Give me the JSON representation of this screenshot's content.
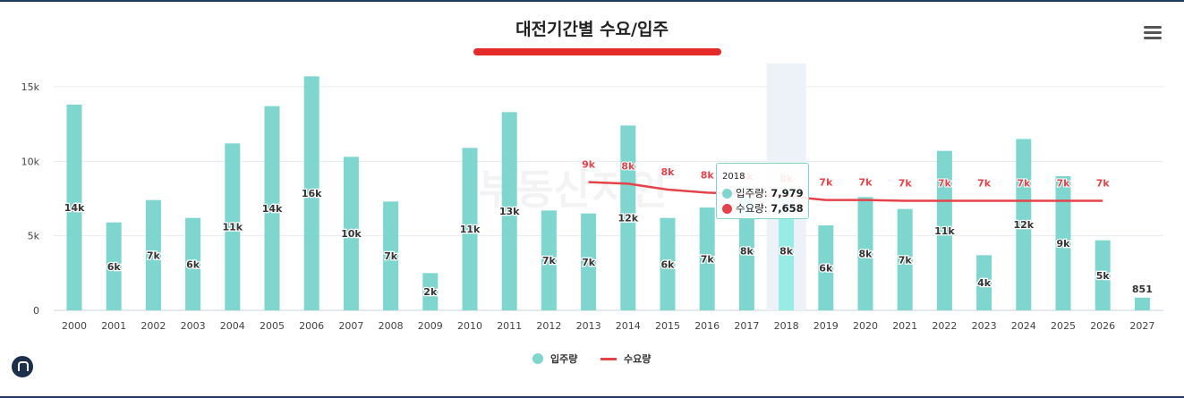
{
  "title": "대전기간별 수요/입주",
  "colors": {
    "bar": "#7fd6cf",
    "bar_highlight": "#97ece6",
    "line": "#e5434a",
    "title_underline": "#e52a2a",
    "highlight_band": "#edf1f8"
  },
  "menu_icon": "hamburger-menu-icon",
  "logo_icon": "house-logo-icon",
  "watermark": "부동산지인",
  "legend": {
    "supply_label": "입주량",
    "demand_label": "수요량"
  },
  "tooltip": {
    "year": "2018",
    "supply_label": "입주량:",
    "supply_value": "7,979",
    "demand_label": "수요량:",
    "demand_value": "7,658"
  },
  "chart_data": {
    "type": "bar",
    "categories": [
      "2000",
      "2001",
      "2002",
      "2003",
      "2004",
      "2005",
      "2006",
      "2007",
      "2008",
      "2009",
      "2010",
      "2011",
      "2012",
      "2013",
      "2014",
      "2015",
      "2016",
      "2017",
      "2018",
      "2019",
      "2020",
      "2021",
      "2022",
      "2023",
      "2024",
      "2025",
      "2026",
      "2027"
    ],
    "series": [
      {
        "name": "입주량",
        "type": "bar",
        "values": [
          13800,
          5900,
          7400,
          6200,
          11200,
          13700,
          15700,
          10300,
          7300,
          2500,
          10900,
          13300,
          6700,
          6500,
          12400,
          6200,
          6900,
          8000,
          7979,
          5700,
          7600,
          6800,
          10700,
          3700,
          11500,
          9000,
          4700,
          851
        ],
        "labels": [
          "14k",
          "6k",
          "7k",
          "6k",
          "11k",
          "14k",
          "16k",
          "10k",
          "7k",
          "2k",
          "11k",
          "13k",
          "7k",
          "7k",
          "12k",
          "6k",
          "7k",
          "8k",
          "8k",
          "6k",
          "8k",
          "7k",
          "11k",
          "4k",
          "12k",
          "9k",
          "5k",
          "851"
        ]
      },
      {
        "name": "수요량",
        "type": "line",
        "values": [
          null,
          null,
          null,
          null,
          null,
          null,
          null,
          null,
          null,
          null,
          null,
          null,
          null,
          8600,
          8500,
          8100,
          7900,
          7800,
          7658,
          7400,
          7400,
          7350,
          7350,
          7350,
          7350,
          7350,
          7350,
          null
        ],
        "labels": [
          "",
          "",
          "",
          "",
          "",
          "",
          "",
          "",
          "",
          "",
          "",
          "",
          "",
          "9k",
          "8k",
          "8k",
          "8k",
          "8k",
          "8k",
          "7k",
          "7k",
          "7k",
          "7k",
          "7k",
          "7k",
          "7k",
          "7k",
          ""
        ]
      }
    ],
    "y_ticks": [
      "0",
      "5k",
      "10k",
      "15k"
    ],
    "ylim": [
      0,
      16500
    ],
    "highlighted_category": "2018",
    "grid": true,
    "legend_position": "bottom"
  }
}
